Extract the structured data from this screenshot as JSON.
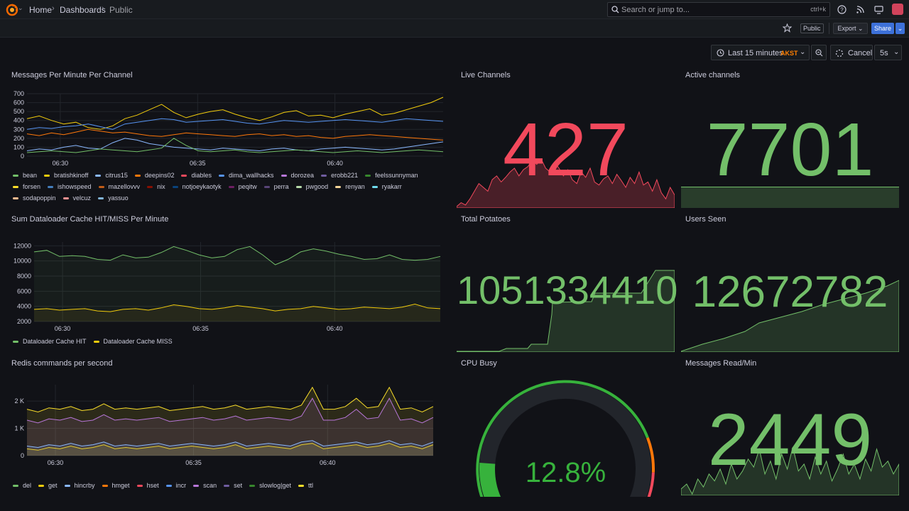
{
  "topbar": {
    "breadcrumb": [
      "Home",
      "Dashboards",
      "Public"
    ],
    "search_placeholder": "Search or jump to...",
    "search_shortcut": "ctrl+k",
    "icons": [
      "help-icon",
      "rss-icon",
      "monitor-icon"
    ]
  },
  "subbar": {
    "public_badge": "Public",
    "export_label": "Export",
    "share_label": "Share"
  },
  "timebar": {
    "range_label": "Last 15 minutes",
    "timezone": "AKST",
    "cancel_label": "Cancel",
    "refresh_interval": "5s"
  },
  "colors": {
    "accent_red": "#f2495c",
    "accent_green": "#73bf69",
    "background": "#111217",
    "share_blue": "#3d71d9",
    "timezone_orange": "#ff7f00"
  },
  "panels": {
    "messages_per_minute": {
      "title": "Messages Per Minute Per Channel",
      "legend": [
        {
          "name": "bean",
          "color": "#73bf69"
        },
        {
          "name": "bratishkinoff",
          "color": "#f2cc0c"
        },
        {
          "name": "citrus15",
          "color": "#8ab8ff"
        },
        {
          "name": "deepins02",
          "color": "#ff780a"
        },
        {
          "name": "diables",
          "color": "#f2495c"
        },
        {
          "name": "dima_wallhacks",
          "color": "#5794f2"
        },
        {
          "name": "dorozea",
          "color": "#b877d9"
        },
        {
          "name": "erobb221",
          "color": "#705da0"
        },
        {
          "name": "feelssunnyman",
          "color": "#37872d"
        },
        {
          "name": "forsen",
          "color": "#fade2a"
        },
        {
          "name": "ishowspeed",
          "color": "#447ebc"
        },
        {
          "name": "mazellovvv",
          "color": "#c15c17"
        },
        {
          "name": "nix",
          "color": "#890f02"
        },
        {
          "name": "notjoeykaotyk",
          "color": "#0a437c"
        },
        {
          "name": "peqitw",
          "color": "#6d1f62"
        },
        {
          "name": "perra",
          "color": "#584477"
        },
        {
          "name": "pwgood",
          "color": "#b7dbab"
        },
        {
          "name": "renyan",
          "color": "#f4d598"
        },
        {
          "name": "ryakarr",
          "color": "#70dbed"
        },
        {
          "name": "sodapoppin",
          "color": "#f9ba8f"
        },
        {
          "name": "velcuz",
          "color": "#f29191"
        },
        {
          "name": "yassuo",
          "color": "#82b5d8"
        }
      ]
    },
    "live_channels": {
      "title": "Live Channels",
      "value": "427"
    },
    "active_channels": {
      "title": "Active channels",
      "value": "7701"
    },
    "dataloader": {
      "title": "Sum Dataloader Cache HIT/MISS Per Minute",
      "legend": [
        {
          "name": "Dataloader Cache HIT",
          "color": "#73bf69"
        },
        {
          "name": "Dataloader Cache MISS",
          "color": "#f2cc0c"
        }
      ]
    },
    "total_potatoes": {
      "title": "Total Potatoes",
      "value": "1051334410"
    },
    "users_seen": {
      "title": "Users Seen",
      "value": "12672782"
    },
    "redis": {
      "title": "Redis commands per second",
      "legend": [
        {
          "name": "del",
          "color": "#73bf69"
        },
        {
          "name": "get",
          "color": "#f2cc0c"
        },
        {
          "name": "hincrby",
          "color": "#8ab8ff"
        },
        {
          "name": "hmget",
          "color": "#ff780a"
        },
        {
          "name": "hset",
          "color": "#f2495c"
        },
        {
          "name": "incr",
          "color": "#5794f2"
        },
        {
          "name": "scan",
          "color": "#b877d9"
        },
        {
          "name": "set",
          "color": "#705da0"
        },
        {
          "name": "slowlog|get",
          "color": "#37872d"
        },
        {
          "name": "ttl",
          "color": "#fade2a"
        }
      ]
    },
    "cpu_busy": {
      "title": "CPU Busy",
      "value": "12.8%",
      "percent": 12.8
    },
    "messages_read": {
      "title": "Messages Read/Min",
      "value": "2449"
    }
  },
  "chart_data": [
    {
      "type": "line",
      "title": "Messages Per Minute Per Channel",
      "x_ticks": [
        "06:30",
        "06:35",
        "06:40"
      ],
      "y_ticks": [
        "0",
        "100",
        "200",
        "300",
        "400",
        "500",
        "600",
        "700"
      ],
      "ylim": [
        0,
        700
      ],
      "series": [
        {
          "name": "bratishkinoff",
          "color": "#f2cc0c",
          "values": [
            420,
            450,
            400,
            360,
            380,
            320,
            300,
            340,
            420,
            460,
            520,
            580,
            490,
            430,
            470,
            500,
            520,
            470,
            430,
            400,
            440,
            490,
            510,
            450,
            460,
            430,
            470,
            500,
            530,
            460,
            480,
            520,
            560,
            600,
            660
          ]
        },
        {
          "name": "dima_wallhacks",
          "color": "#5794f2",
          "values": [
            300,
            320,
            310,
            330,
            340,
            360,
            330,
            300,
            360,
            380,
            400,
            420,
            410,
            380,
            390,
            400,
            410,
            390,
            370,
            360,
            380,
            400,
            390,
            380,
            390,
            400,
            410,
            400,
            390,
            380,
            400,
            420,
            410,
            400,
            390
          ]
        },
        {
          "name": "deepins02",
          "color": "#ff780a",
          "values": [
            250,
            230,
            260,
            240,
            270,
            300,
            280,
            260,
            270,
            250,
            230,
            220,
            240,
            260,
            250,
            240,
            230,
            220,
            240,
            250,
            230,
            240,
            220,
            230,
            210,
            200,
            220,
            230,
            240,
            230,
            220,
            210,
            200,
            190,
            180
          ]
        },
        {
          "name": "citrus15",
          "color": "#8ab8ff",
          "values": [
            60,
            80,
            70,
            100,
            120,
            90,
            80,
            150,
            200,
            180,
            140,
            120,
            100,
            90,
            80,
            70,
            90,
            80,
            70,
            60,
            80,
            90,
            70,
            60,
            80,
            90,
            100,
            90,
            80,
            70,
            80,
            100,
            120,
            140,
            160
          ]
        },
        {
          "name": "bean",
          "color": "#73bf69",
          "values": [
            40,
            50,
            60,
            50,
            40,
            60,
            80,
            70,
            60,
            50,
            70,
            90,
            200,
            120,
            60,
            50,
            60,
            70,
            50,
            40,
            50,
            60,
            70,
            60,
            50,
            40,
            50,
            60,
            50,
            40,
            50,
            60,
            70,
            60,
            50
          ]
        }
      ]
    },
    {
      "type": "line",
      "title": "Sum Dataloader Cache HIT/MISS Per Minute",
      "x_ticks": [
        "06:30",
        "06:35",
        "06:40"
      ],
      "y_ticks": [
        "2000",
        "4000",
        "6000",
        "8000",
        "10000",
        "12000"
      ],
      "ylim": [
        2000,
        12500
      ],
      "series": [
        {
          "name": "Dataloader Cache HIT",
          "color": "#73bf69",
          "values": [
            11200,
            11400,
            10600,
            10700,
            10600,
            10200,
            10100,
            10800,
            10400,
            10500,
            11100,
            11900,
            11400,
            10800,
            10400,
            10600,
            11500,
            11900,
            10800,
            9500,
            10200,
            11200,
            11600,
            11300,
            10900,
            10600,
            10200,
            10300,
            10800,
            10200,
            10100,
            10200,
            10600
          ]
        },
        {
          "name": "Dataloader Cache MISS",
          "color": "#f2cc0c",
          "values": [
            3600,
            3700,
            3500,
            3600,
            3700,
            3400,
            3300,
            3600,
            3700,
            3500,
            3800,
            4200,
            4000,
            3700,
            3600,
            3800,
            4100,
            3900,
            3700,
            3400,
            3600,
            3700,
            4000,
            3800,
            3600,
            3700,
            3900,
            3800,
            3700,
            3900,
            4300,
            3800,
            3700
          ]
        }
      ]
    },
    {
      "type": "line",
      "title": "Redis commands per second",
      "x_ticks": [
        "06:30",
        "06:35",
        "06:40"
      ],
      "y_ticks": [
        "0",
        "1 K",
        "2 K"
      ],
      "ylim": [
        0,
        2600
      ],
      "series": [
        {
          "name": "ttl",
          "color": "#fade2a",
          "values": [
            1700,
            1600,
            1750,
            1700,
            1800,
            1650,
            1700,
            1900,
            1700,
            1750,
            1700,
            1750,
            1800,
            1650,
            1700,
            1750,
            1800,
            1700,
            1750,
            1850,
            1700,
            1750,
            1800,
            1750,
            1700,
            1850,
            2500,
            1700,
            1700,
            1800,
            2100,
            1750,
            1800,
            2500,
            1700,
            1750,
            1600,
            1800
          ]
        },
        {
          "name": "scan",
          "color": "#b877d9",
          "values": [
            1300,
            1200,
            1350,
            1300,
            1400,
            1250,
            1300,
            1500,
            1300,
            1350,
            1300,
            1350,
            1400,
            1250,
            1300,
            1350,
            1400,
            1300,
            1350,
            1450,
            1300,
            1350,
            1400,
            1350,
            1300,
            1450,
            2100,
            1300,
            1300,
            1400,
            1700,
            1350,
            1400,
            2100,
            1300,
            1350,
            1200,
            1400
          ]
        },
        {
          "name": "get",
          "color": "#f2cc0c",
          "values": [
            250,
            200,
            300,
            250,
            350,
            250,
            300,
            400,
            250,
            300,
            250,
            300,
            350,
            250,
            300,
            350,
            300,
            250,
            300,
            400,
            250,
            300,
            350,
            300,
            250,
            400,
            450,
            250,
            300,
            350,
            400,
            300,
            350,
            450,
            300,
            350,
            250,
            400
          ]
        },
        {
          "name": "hincrby",
          "color": "#8ab8ff",
          "values": [
            350,
            300,
            400,
            350,
            450,
            350,
            400,
            500,
            350,
            400,
            350,
            400,
            450,
            350,
            400,
            450,
            400,
            350,
            400,
            500,
            350,
            400,
            450,
            400,
            350,
            500,
            550,
            350,
            400,
            450,
            500,
            400,
            450,
            550,
            400,
            450,
            350,
            500
          ]
        }
      ]
    }
  ]
}
